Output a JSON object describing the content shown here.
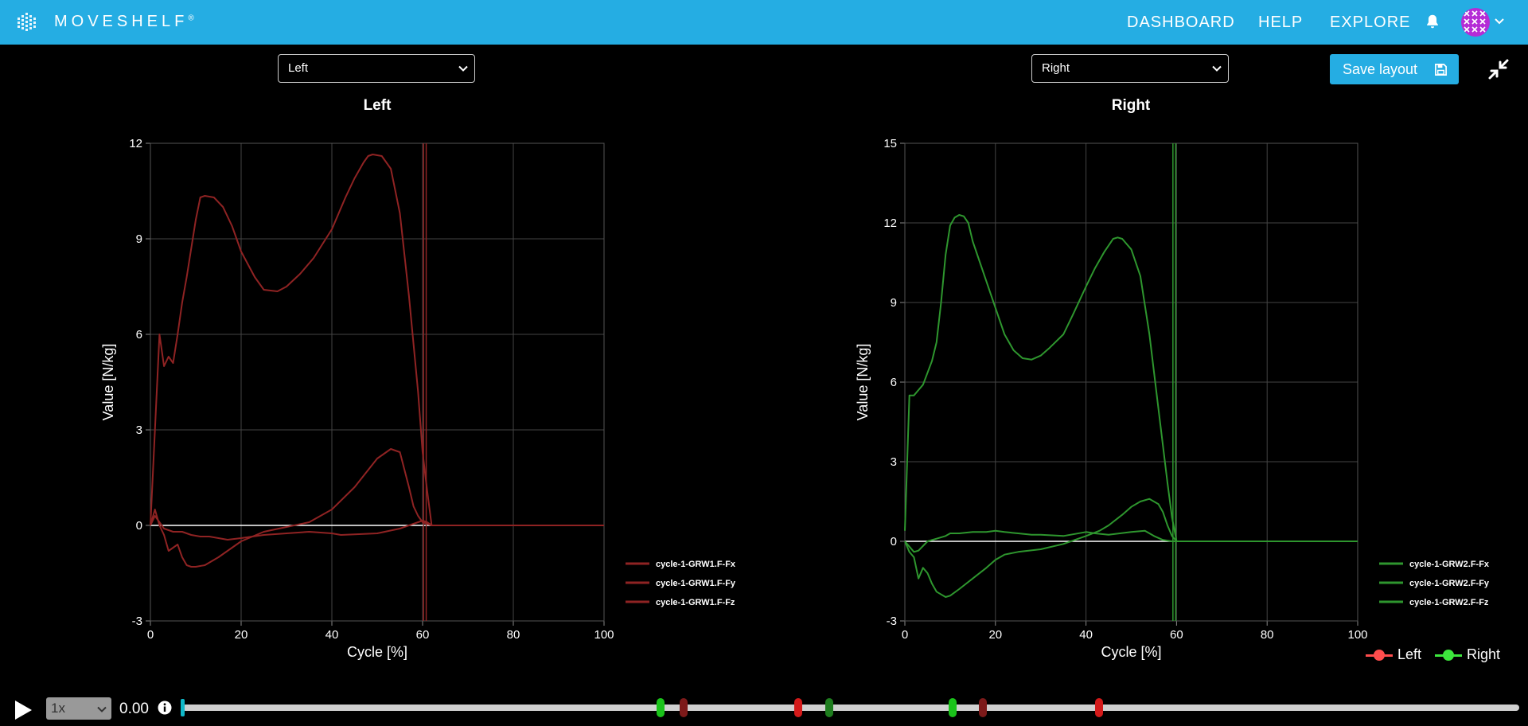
{
  "header": {
    "brand": "MOVESHELF",
    "trademark": "®",
    "nav": [
      {
        "label": "DASHBOARD"
      },
      {
        "label": "HELP"
      },
      {
        "label": "EXPLORE"
      }
    ],
    "icons": [
      "bell-icon",
      "avatar",
      "chevron-down-icon"
    ],
    "bg_color": "#25ade3"
  },
  "toolbar": {
    "save_label": "Save layout",
    "save_icon": "floppy-disk-icon",
    "collapse_icon": "collapse-arrows-icon"
  },
  "panels": [
    {
      "select_value": "Left",
      "title": "Left"
    },
    {
      "select_value": "Right",
      "title": "Right"
    }
  ],
  "chart_data": [
    {
      "type": "line",
      "title": "Left",
      "xlabel": "Cycle [%]",
      "ylabel": "Value [N/kg]",
      "xlim": [
        0,
        100
      ],
      "ylim": [
        -3,
        12
      ],
      "xticks": [
        0,
        20,
        40,
        60,
        80,
        100
      ],
      "yticks": [
        -3,
        0,
        3,
        6,
        9,
        12
      ],
      "grid": true,
      "legend_position": "right",
      "color": "#8f2323",
      "event_lines_x": [
        60.2,
        60.8
      ],
      "series": [
        {
          "name": "cycle-1-GRW1.F-Fx",
          "x": [
            0,
            1,
            2,
            3,
            5,
            7,
            9,
            11,
            13,
            15,
            17,
            20,
            25,
            30,
            35,
            40,
            42,
            45,
            50,
            55,
            58,
            60,
            61,
            62,
            100
          ],
          "y": [
            0,
            0.3,
            0.1,
            -0.1,
            -0.2,
            -0.2,
            -0.3,
            -0.35,
            -0.35,
            -0.4,
            -0.45,
            -0.4,
            -0.3,
            -0.25,
            -0.2,
            -0.25,
            -0.3,
            -0.28,
            -0.25,
            -0.1,
            0.05,
            0.15,
            0.1,
            0,
            0
          ]
        },
        {
          "name": "cycle-1-GRW1.F-Fy",
          "x": [
            0,
            1,
            2,
            3,
            4,
            5,
            6,
            7,
            8,
            9,
            10,
            12,
            15,
            20,
            25,
            30,
            35,
            40,
            45,
            50,
            53,
            55,
            57,
            58,
            59,
            60,
            61,
            62,
            100
          ],
          "y": [
            0,
            0.5,
            0,
            -0.3,
            -0.8,
            -0.7,
            -0.6,
            -1.0,
            -1.25,
            -1.3,
            -1.3,
            -1.25,
            -1.0,
            -0.5,
            -0.2,
            -0.05,
            0.1,
            0.5,
            1.2,
            2.1,
            2.4,
            2.3,
            1.2,
            0.6,
            0.3,
            0.1,
            0.05,
            0,
            0
          ]
        },
        {
          "name": "cycle-1-GRW1.F-Fz",
          "x": [
            0,
            1,
            2,
            3,
            4,
            5,
            6,
            7,
            8,
            10,
            11,
            12,
            14,
            16,
            18,
            20,
            23,
            25,
            28,
            30,
            33,
            36,
            40,
            43,
            45,
            47,
            48,
            49,
            51,
            53,
            55,
            57,
            59,
            60,
            61,
            62,
            100
          ],
          "y": [
            0,
            3,
            6,
            5,
            5.3,
            5.1,
            6,
            7,
            7.8,
            9.6,
            10.3,
            10.35,
            10.3,
            10.0,
            9.4,
            8.6,
            7.8,
            7.4,
            7.35,
            7.5,
            7.9,
            8.4,
            9.3,
            10.3,
            10.9,
            11.4,
            11.6,
            11.65,
            11.6,
            11.2,
            9.8,
            7.2,
            4.2,
            2.3,
            1.1,
            0,
            0
          ]
        }
      ]
    },
    {
      "type": "line",
      "title": "Right",
      "xlabel": "Cycle [%]",
      "ylabel": "Value [N/kg]",
      "xlim": [
        0,
        100
      ],
      "ylim": [
        -3,
        15
      ],
      "xticks": [
        0,
        20,
        40,
        60,
        80,
        100
      ],
      "yticks": [
        -3,
        0,
        3,
        6,
        9,
        12,
        15
      ],
      "grid": true,
      "legend_position": "right",
      "color": "#2e962e",
      "event_lines_x": [
        59.2,
        59.8
      ],
      "series": [
        {
          "name": "cycle-1-GRW2.F-Fx",
          "x": [
            0,
            1,
            2,
            3,
            5,
            7,
            9,
            10,
            12,
            15,
            18,
            20,
            22,
            25,
            28,
            30,
            35,
            40,
            42,
            45,
            50,
            53,
            55,
            57,
            59,
            60,
            100
          ],
          "y": [
            0,
            -0.2,
            -0.4,
            -0.35,
            0,
            0.1,
            0.2,
            0.3,
            0.3,
            0.35,
            0.35,
            0.4,
            0.35,
            0.3,
            0.25,
            0.25,
            0.2,
            0.35,
            0.3,
            0.25,
            0.35,
            0.4,
            0.2,
            0.05,
            0,
            0,
            0
          ]
        },
        {
          "name": "cycle-1-GRW2.F-Fy",
          "x": [
            0,
            1,
            2,
            3,
            4,
            5,
            6,
            7,
            8,
            9,
            10,
            12,
            15,
            18,
            20,
            22,
            25,
            30,
            35,
            40,
            43,
            45,
            48,
            50,
            52,
            54,
            56,
            57,
            58,
            59,
            60,
            100
          ],
          "y": [
            0,
            -0.4,
            -0.6,
            -1.4,
            -1.0,
            -1.2,
            -1.6,
            -1.9,
            -2.0,
            -2.1,
            -2.05,
            -1.8,
            -1.4,
            -1.0,
            -0.7,
            -0.5,
            -0.4,
            -0.3,
            -0.1,
            0.2,
            0.4,
            0.6,
            1.0,
            1.3,
            1.5,
            1.6,
            1.4,
            1.1,
            0.6,
            0.2,
            0,
            0
          ]
        },
        {
          "name": "cycle-1-GRW2.F-Fz",
          "x": [
            0,
            1,
            2,
            3,
            4,
            6,
            7,
            8,
            9,
            10,
            11,
            12,
            13,
            14,
            15,
            16,
            18,
            20,
            22,
            24,
            26,
            28,
            30,
            32,
            35,
            37,
            40,
            42,
            44,
            46,
            47,
            48,
            50,
            52,
            54,
            56,
            58,
            59,
            60,
            100
          ],
          "y": [
            0.4,
            5.5,
            5.5,
            5.7,
            5.9,
            6.8,
            7.5,
            9.0,
            10.8,
            11.9,
            12.2,
            12.3,
            12.25,
            12.0,
            11.3,
            10.8,
            9.8,
            8.8,
            7.8,
            7.2,
            6.9,
            6.85,
            7.0,
            7.3,
            7.8,
            8.5,
            9.6,
            10.3,
            10.9,
            11.4,
            11.45,
            11.4,
            11.0,
            10.0,
            7.8,
            5.0,
            2.2,
            0.9,
            0,
            0
          ]
        }
      ]
    }
  ],
  "legend_lr": [
    {
      "label": "Left",
      "color": "#ff4d4d"
    },
    {
      "label": "Right",
      "color": "#3de83d"
    }
  ],
  "player": {
    "play_icon": "play-icon",
    "speed": "1x",
    "time": "0.00",
    "info_icon": "info-icon",
    "handle_color": "#0fb8c8",
    "markers": [
      {
        "position_pct": 35.8,
        "color": "#1ac31a"
      },
      {
        "position_pct": 37.5,
        "color": "#7d1a1a"
      },
      {
        "position_pct": 46.1,
        "color": "#d41a1a"
      },
      {
        "position_pct": 48.4,
        "color": "#1e7d1e"
      },
      {
        "position_pct": 57.6,
        "color": "#1ac31a"
      },
      {
        "position_pct": 59.9,
        "color": "#7d1a1a"
      },
      {
        "position_pct": 68.6,
        "color": "#d41a1a"
      }
    ]
  }
}
